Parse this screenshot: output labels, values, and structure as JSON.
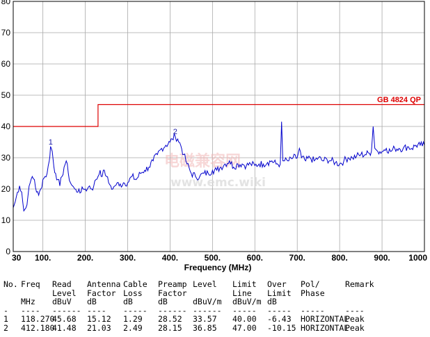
{
  "chart_data": {
    "type": "line",
    "xlabel": "Frequency (MHz)",
    "xlim": [
      30,
      1000
    ],
    "ylim": [
      0,
      80
    ],
    "x_tick_labels": [
      "30",
      "100.",
      "200.",
      "300.",
      "400.",
      "500.",
      "600.",
      "700.",
      "800.",
      "900.",
      "1000"
    ],
    "y_tick_labels": [
      "0",
      "10",
      "20",
      "30",
      "40",
      "50",
      "60",
      "70",
      "80"
    ],
    "grid": true,
    "limit": {
      "name": "GB 4824 QP",
      "points": [
        [
          30,
          40
        ],
        [
          230,
          40
        ],
        [
          230,
          47
        ],
        [
          1000,
          47
        ]
      ],
      "color": "#dd0000"
    },
    "series": [
      {
        "color": "#0000cc",
        "x": [
          30,
          35,
          40,
          45,
          50,
          55,
          60,
          65,
          70,
          75,
          80,
          85,
          90,
          95,
          100,
          105,
          110,
          115,
          118,
          122,
          126,
          130,
          135,
          140,
          145,
          150,
          155,
          160,
          165,
          170,
          175,
          180,
          185,
          190,
          195,
          200,
          205,
          210,
          215,
          220,
          225,
          230,
          235,
          240,
          245,
          250,
          255,
          260,
          265,
          270,
          275,
          280,
          290,
          300,
          310,
          320,
          330,
          340,
          350,
          360,
          370,
          380,
          390,
          400,
          405,
          412,
          418,
          425,
          432,
          440,
          450,
          460,
          470,
          480,
          490,
          500,
          510,
          520,
          530,
          540,
          550,
          560,
          570,
          580,
          590,
          600,
          610,
          620,
          630,
          640,
          650,
          660,
          663,
          666,
          670,
          680,
          690,
          700,
          705,
          710,
          720,
          730,
          740,
          750,
          760,
          770,
          780,
          790,
          800,
          810,
          820,
          830,
          840,
          850,
          860,
          870,
          875,
          879,
          883,
          890,
          900,
          910,
          920,
          930,
          940,
          950,
          960,
          970,
          980,
          990,
          1000
        ],
        "y": [
          14,
          16,
          19,
          21,
          19,
          13,
          14,
          18,
          22,
          24,
          23,
          19,
          18,
          20,
          23,
          24,
          25,
          29,
          33.6,
          32,
          27,
          25,
          23,
          21,
          24,
          27,
          29,
          25,
          22,
          21,
          20,
          19,
          20,
          19,
          20,
          20,
          20,
          21,
          20,
          21,
          23,
          24,
          26,
          24,
          26,
          24,
          22,
          21,
          20,
          21,
          22,
          21,
          22,
          22,
          24,
          23,
          25,
          26,
          27,
          29,
          31,
          33,
          34,
          35,
          36,
          36.9,
          36,
          34,
          31,
          28,
          25,
          24,
          24,
          25,
          25,
          26,
          26,
          27,
          28,
          29,
          27,
          28,
          28,
          27.5,
          28,
          27.5,
          28,
          28,
          28.5,
          29,
          28,
          28,
          41.5,
          29,
          29,
          29,
          30,
          30,
          33,
          30,
          29,
          30,
          29,
          30,
          29,
          29.5,
          29,
          28.5,
          28,
          29,
          30,
          30,
          30.5,
          31,
          31,
          31.5,
          32,
          40,
          33,
          32,
          32,
          33,
          32,
          33,
          33,
          33,
          33.5,
          33,
          34,
          34,
          34
        ]
      }
    ],
    "markers": [
      {
        "label": "1",
        "x": 118.27,
        "y": 33.57
      },
      {
        "label": "2",
        "x": 412.18,
        "y": 36.85
      }
    ]
  },
  "watermark": {
    "cn": "电磁兼容网",
    "url": "www.emc.wiki"
  },
  "table": {
    "header_rows": [
      [
        "No.",
        "Freq",
        "Read",
        "Antenna",
        "Cable",
        "Preamp",
        "Level",
        "Limit",
        "Over",
        "Pol/",
        "Remark"
      ],
      [
        "",
        "",
        "Level",
        "Factor",
        "Loss",
        "Factor",
        "",
        "Line",
        "Limit",
        "Phase",
        ""
      ],
      [
        "",
        "MHz",
        "dBuV",
        "dB",
        "dB",
        "dB",
        "dBuV/m",
        "dBuV/m",
        "dB",
        "",
        ""
      ],
      [
        "-",
        "----",
        "------",
        "----",
        "-----",
        "------",
        "------",
        "-----",
        "-----",
        "-----",
        "----"
      ]
    ],
    "rows": [
      [
        "1",
        "118.270",
        "45.68",
        "15.12",
        "1.29",
        "28.52",
        "33.57",
        "40.00",
        "-6.43",
        "HORIZONTAL",
        "Peak"
      ],
      [
        "2",
        "412.180",
        "41.48",
        "21.03",
        "2.49",
        "28.15",
        "36.85",
        "47.00",
        "-10.15",
        "HORIZONTAL",
        "Peak"
      ]
    ]
  }
}
